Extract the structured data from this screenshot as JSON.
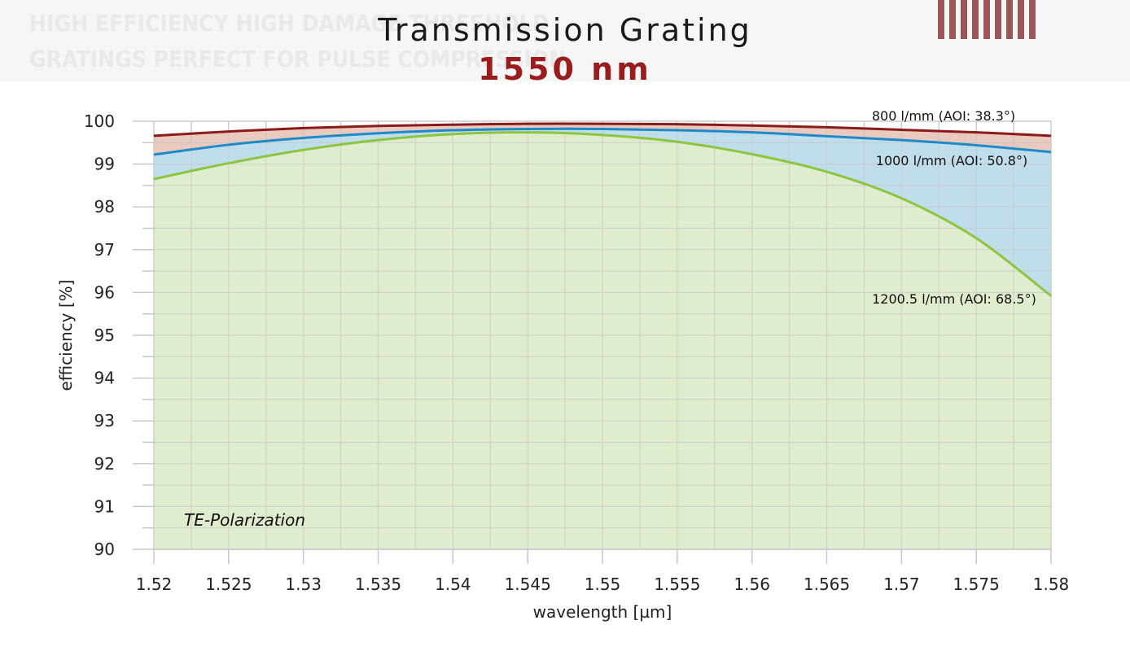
{
  "background": {
    "line1": "HIGH EFFICIENCY HIGH DAMAGE THRESHOLD",
    "line2": "GRATINGS PERFECT FOR PULSE COMPRESSION"
  },
  "chart_data": {
    "type": "area",
    "title": "Transmission Grating",
    "subtitle": "1550 nm",
    "xlabel": "wavelength [µm]",
    "ylabel": "efficiency [%]",
    "xlim": [
      1.52,
      1.58
    ],
    "ylim": [
      90,
      100
    ],
    "x_ticks": [
      "1.52",
      "1.525",
      "1.53",
      "1.535",
      "1.54",
      "1.545",
      "1.55",
      "1.555",
      "1.56",
      "1.565",
      "1.57",
      "1.575",
      "1.58"
    ],
    "y_ticks": [
      "90",
      "91",
      "92",
      "93",
      "94",
      "95",
      "96",
      "97",
      "98",
      "99",
      "100"
    ],
    "grid": true,
    "annotation": "TE-Polarization",
    "x": [
      1.52,
      1.525,
      1.53,
      1.535,
      1.54,
      1.545,
      1.55,
      1.555,
      1.56,
      1.565,
      1.57,
      1.575,
      1.58
    ],
    "series": [
      {
        "name": "800 l/mm (AOI: 38.3°)",
        "color": "#8b1a1a",
        "fill": "#e6bfb3",
        "values": [
          99.66,
          99.76,
          99.84,
          99.89,
          99.92,
          99.94,
          99.94,
          99.93,
          99.9,
          99.86,
          99.8,
          99.74,
          99.66
        ]
      },
      {
        "name": "1000 l/mm (AOI: 50.8°)",
        "color": "#1f8ac8",
        "fill": "#b8e0f4",
        "values": [
          99.22,
          99.45,
          99.61,
          99.72,
          99.79,
          99.82,
          99.82,
          99.79,
          99.74,
          99.65,
          99.56,
          99.44,
          99.28
        ]
      },
      {
        "name": "1200.5 l/mm (AOI: 68.5°)",
        "color": "#8cc63f",
        "fill": "#e4eec8",
        "values": [
          98.65,
          99.02,
          99.33,
          99.56,
          99.7,
          99.74,
          99.68,
          99.52,
          99.23,
          98.82,
          98.2,
          97.27,
          95.92
        ]
      }
    ]
  }
}
